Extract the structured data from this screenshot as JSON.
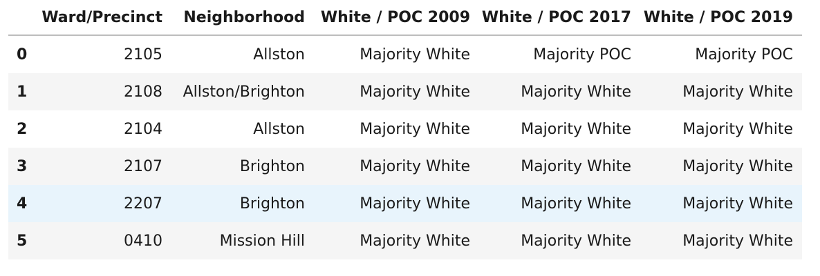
{
  "table": {
    "columns": [
      "",
      "Ward/Precinct",
      "Neighborhood",
      "White / POC 2009",
      "White / POC 2017",
      "White / POC 2019"
    ],
    "rows": [
      {
        "index": "0",
        "ward": "2105",
        "neighborhood": "Allston",
        "w2009": "Majority White",
        "w2017": "Majority POC",
        "w2019": "Majority POC"
      },
      {
        "index": "1",
        "ward": "2108",
        "neighborhood": "Allston/Brighton",
        "w2009": "Majority White",
        "w2017": "Majority White",
        "w2019": "Majority White"
      },
      {
        "index": "2",
        "ward": "2104",
        "neighborhood": "Allston",
        "w2009": "Majority White",
        "w2017": "Majority White",
        "w2019": "Majority White"
      },
      {
        "index": "3",
        "ward": "2107",
        "neighborhood": "Brighton",
        "w2009": "Majority White",
        "w2017": "Majority White",
        "w2019": "Majority White"
      },
      {
        "index": "4",
        "ward": "2207",
        "neighborhood": "Brighton",
        "w2009": "Majority White",
        "w2017": "Majority White",
        "w2019": "Majority White"
      },
      {
        "index": "5",
        "ward": "0410",
        "neighborhood": "Mission Hill",
        "w2009": "Majority White",
        "w2017": "Majority White",
        "w2019": "Majority White"
      }
    ],
    "hovered_row": "4",
    "colors": {
      "stripe": "#f5f5f5",
      "hover": "#e8f4fc",
      "header_rule": "#bdbdbd"
    }
  }
}
